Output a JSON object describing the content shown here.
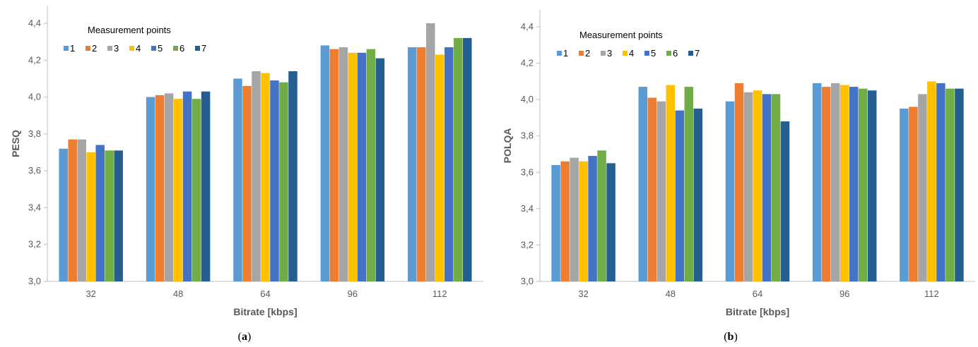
{
  "colors": {
    "series": [
      "#5B9BD5",
      "#ED7D31",
      "#A5A5A5",
      "#FFC000",
      "#4472C4",
      "#70AD47",
      "#255E91"
    ],
    "axis": "#BFBFBF",
    "text": "#595959"
  },
  "chart_data": [
    {
      "type": "bar",
      "caption": {
        "open": "(",
        "letter": "a",
        "close": ")"
      },
      "ylabel": "PESQ",
      "xlabel": "Bitrate [kbps]",
      "legend_title": "Measurement points",
      "legend_position": "top-left",
      "categories": [
        "32",
        "48",
        "64",
        "96",
        "112"
      ],
      "ylim": [
        3.0,
        4.4
      ],
      "yticks": [
        "3,0",
        "3,2",
        "3,4",
        "3,6",
        "3,8",
        "4,0",
        "4,2",
        "4,4"
      ],
      "grid": false,
      "series": [
        {
          "name": "1",
          "values": [
            3.72,
            4.0,
            4.1,
            4.28,
            4.27
          ]
        },
        {
          "name": "2",
          "values": [
            3.77,
            4.01,
            4.06,
            4.26,
            4.27
          ]
        },
        {
          "name": "3",
          "values": [
            3.77,
            4.02,
            4.14,
            4.27,
            4.4
          ]
        },
        {
          "name": "4",
          "values": [
            3.7,
            3.99,
            4.13,
            4.24,
            4.23
          ]
        },
        {
          "name": "5",
          "values": [
            3.74,
            4.03,
            4.09,
            4.24,
            4.27
          ]
        },
        {
          "name": "6",
          "values": [
            3.71,
            3.99,
            4.08,
            4.26,
            4.32
          ]
        },
        {
          "name": "7",
          "values": [
            3.71,
            4.03,
            4.14,
            4.21,
            4.32
          ]
        }
      ]
    },
    {
      "type": "bar",
      "caption": {
        "open": "(",
        "letter": "b",
        "close": ")"
      },
      "ylabel": "POLQA",
      "xlabel": "Bitrate [kbps]",
      "legend_title": "Measurement points",
      "legend_position": "top-left",
      "categories": [
        "32",
        "48",
        "64",
        "96",
        "112"
      ],
      "ylim": [
        3.0,
        4.4
      ],
      "yticks": [
        "3,0",
        "3,2",
        "3,4",
        "3,6",
        "3,8",
        "4,0",
        "4,2",
        "4,4"
      ],
      "grid": false,
      "series": [
        {
          "name": "1",
          "values": [
            3.64,
            4.07,
            3.99,
            4.09,
            3.95
          ]
        },
        {
          "name": "2",
          "values": [
            3.66,
            4.01,
            4.09,
            4.07,
            3.96
          ]
        },
        {
          "name": "3",
          "values": [
            3.68,
            3.99,
            4.04,
            4.09,
            4.03
          ]
        },
        {
          "name": "4",
          "values": [
            3.66,
            4.08,
            4.05,
            4.08,
            4.1
          ]
        },
        {
          "name": "5",
          "values": [
            3.69,
            3.94,
            4.03,
            4.07,
            4.09
          ]
        },
        {
          "name": "6",
          "values": [
            3.72,
            4.07,
            4.03,
            4.06,
            4.06
          ]
        },
        {
          "name": "7",
          "values": [
            3.65,
            3.95,
            3.88,
            4.05,
            4.06
          ]
        }
      ]
    }
  ]
}
